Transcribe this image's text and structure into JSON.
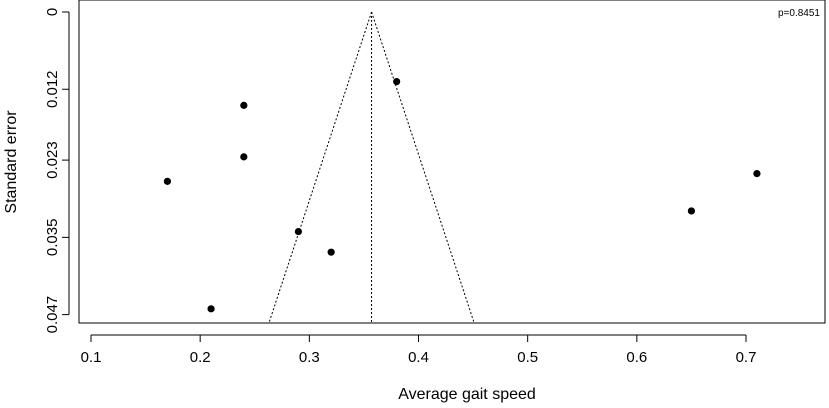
{
  "chart_data": {
    "type": "scatter",
    "title": "",
    "xlabel": "Average gait speed",
    "ylabel": "Standard error",
    "xlim": [
      0.08,
      0.77
    ],
    "ylim": [
      0,
      0.0483
    ],
    "y_reversed": true,
    "x_ticks": [
      0.1,
      0.2,
      0.3,
      0.4,
      0.5,
      0.6,
      0.7
    ],
    "x_tick_labels": [
      "0.1",
      "0.2",
      "0.3",
      "0.4",
      "0.5",
      "0.6",
      "0.7"
    ],
    "y_ticks": [
      0,
      0.012,
      0.023,
      0.035,
      0.047
    ],
    "y_tick_labels": [
      "0",
      "0.012",
      "0.023",
      "0.035",
      "0.047"
    ],
    "annotation": "p=0.8451",
    "points": [
      {
        "x": 0.24,
        "y": 0.0145
      },
      {
        "x": 0.24,
        "y": 0.0225
      },
      {
        "x": 0.17,
        "y": 0.0263
      },
      {
        "x": 0.38,
        "y": 0.0108
      },
      {
        "x": 0.29,
        "y": 0.0341
      },
      {
        "x": 0.32,
        "y": 0.0373
      },
      {
        "x": 0.21,
        "y": 0.0461
      },
      {
        "x": 0.65,
        "y": 0.0309
      },
      {
        "x": 0.71,
        "y": 0.0251
      }
    ],
    "funnel": {
      "center": 0.357,
      "apex_se": 0,
      "base_se": 0.0483,
      "base_left": 0.263,
      "base_right": 0.451
    },
    "grid": false,
    "legend": "none"
  }
}
